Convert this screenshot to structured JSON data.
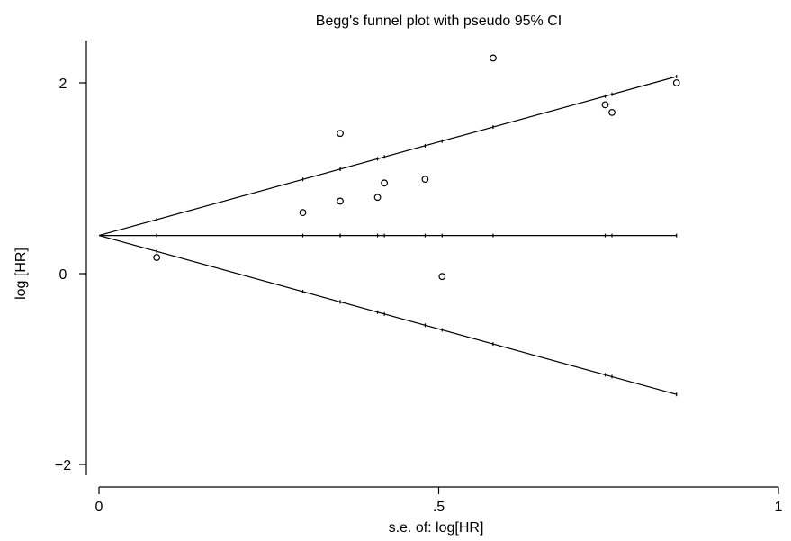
{
  "chart_data": {
    "type": "scatter",
    "title": "Begg's funnel plot with pseudo 95% CI",
    "xlabel": "s.e. of: log[HR]",
    "ylabel": "log [HR]",
    "xlim": [
      0,
      1
    ],
    "ylim": [
      -2,
      2.4
    ],
    "xticks": [
      0,
      0.5,
      1
    ],
    "xtick_labels": [
      "0",
      ".5",
      "1"
    ],
    "yticks": [
      -2,
      0,
      2
    ],
    "ytick_labels": [
      "−2",
      "0",
      "2"
    ],
    "grid": false,
    "legend": "none",
    "pooled_estimate": 0.4,
    "funnel_se_max": 0.85,
    "points": [
      {
        "x": 0.085,
        "y": 0.17
      },
      {
        "x": 0.3,
        "y": 0.64
      },
      {
        "x": 0.355,
        "y": 1.47
      },
      {
        "x": 0.355,
        "y": 0.76
      },
      {
        "x": 0.41,
        "y": 0.8
      },
      {
        "x": 0.42,
        "y": 0.95
      },
      {
        "x": 0.48,
        "y": 0.99
      },
      {
        "x": 0.505,
        "y": -0.03
      },
      {
        "x": 0.58,
        "y": 2.26
      },
      {
        "x": 0.745,
        "y": 1.77
      },
      {
        "x": 0.755,
        "y": 1.69
      },
      {
        "x": 0.85,
        "y": 2.0
      }
    ]
  }
}
